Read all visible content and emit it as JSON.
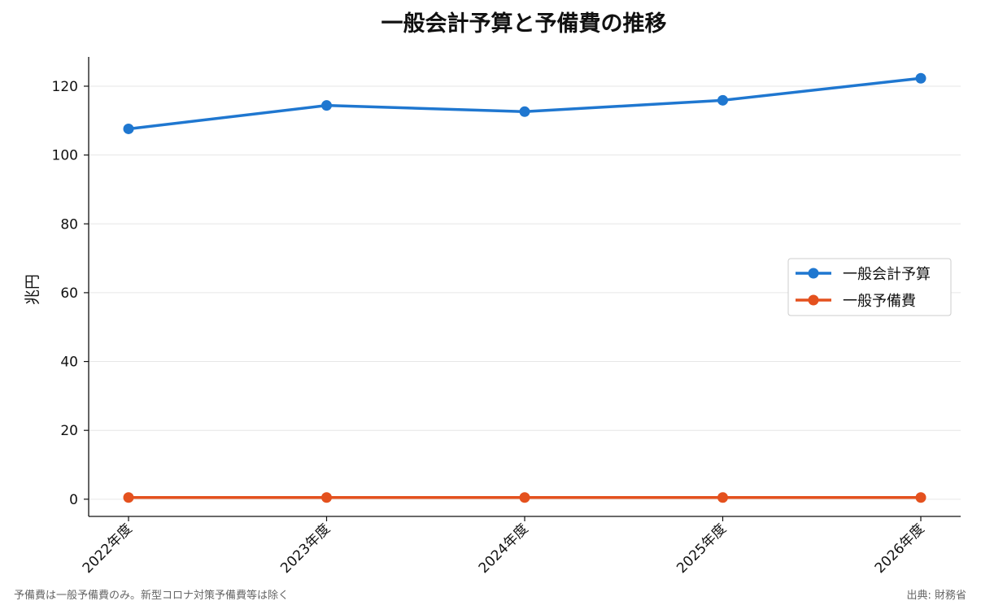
{
  "chart_data": {
    "type": "line",
    "title": "一般会計予算と予備費の推移",
    "xlabel": "",
    "ylabel": "兆円",
    "categories": [
      "2022年度",
      "2023年度",
      "2024年度",
      "2025年度",
      "2026年度"
    ],
    "ylim": [
      -5,
      128.5
    ],
    "yticks": [
      0,
      20,
      40,
      60,
      80,
      100,
      120
    ],
    "grid": "y",
    "legend_position": "right",
    "series": [
      {
        "name": "一般会計予算",
        "color": "#1f77d0",
        "values": [
          107.6,
          114.4,
          112.6,
          115.9,
          122.3
        ]
      },
      {
        "name": "一般予備費",
        "color": "#e4511e",
        "values": [
          0.5,
          0.5,
          0.5,
          0.5,
          0.5
        ]
      }
    ]
  },
  "footnote": "予備費は一般予備費のみ。新型コロナ対策予備費等は除く",
  "source": "出典: 財務省"
}
